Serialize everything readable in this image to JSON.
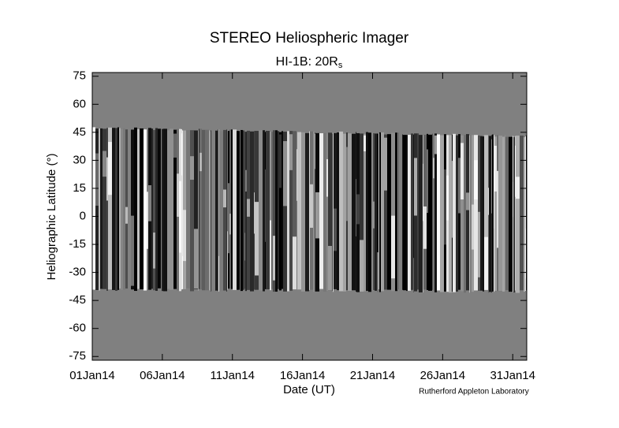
{
  "chart_data": {
    "type": "heatmap",
    "title": "STEREO Heliospheric Imager",
    "subtitle": "HI-1B: 20R",
    "subtitle_subscript": "s",
    "xlabel": "Date (UT)",
    "ylabel": "Heliographic Latitude (°)",
    "credit": "Rutherford Appleton Laboratory",
    "xlim": [
      "2014-01-01",
      "2014-02-01"
    ],
    "xticks": [
      {
        "value": "2014-01-01",
        "label": "01Jan14"
      },
      {
        "value": "2014-01-06",
        "label": "06Jan14"
      },
      {
        "value": "2014-01-11",
        "label": "11Jan14"
      },
      {
        "value": "2014-01-16",
        "label": "16Jan14"
      },
      {
        "value": "2014-01-21",
        "label": "21Jan14"
      },
      {
        "value": "2014-01-26",
        "label": "26Jan14"
      },
      {
        "value": "2014-01-31",
        "label": "31Jan14"
      }
    ],
    "ylim": [
      -77,
      77
    ],
    "yticks": [
      -75,
      -60,
      -45,
      -30,
      -15,
      0,
      15,
      30,
      45,
      60,
      75
    ]
  }
}
